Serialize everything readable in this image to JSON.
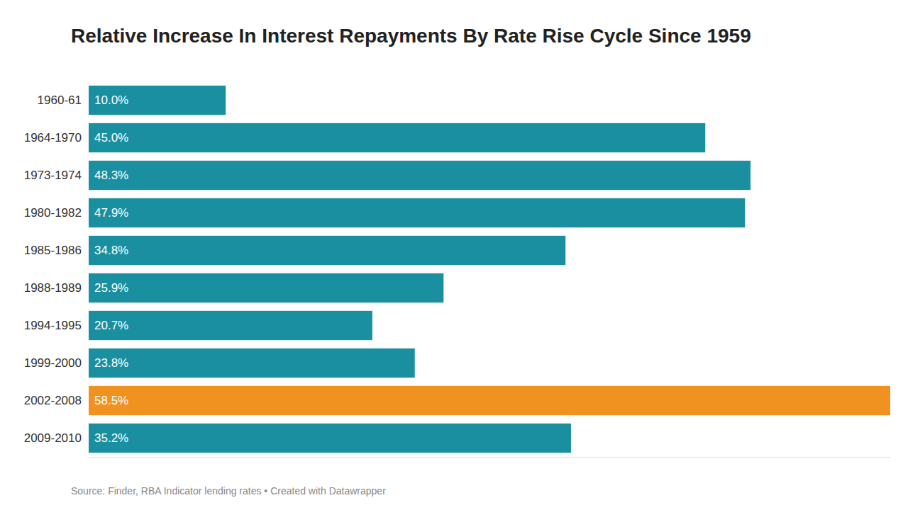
{
  "chart_data": {
    "type": "bar",
    "orientation": "horizontal",
    "title": "Relative Increase In Interest Repayments By Rate Rise Cycle Since 1959",
    "categories": [
      "1960-61",
      "1964-1970",
      "1973-1974",
      "1980-1982",
      "1985-1986",
      "1988-1989",
      "1994-1995",
      "1999-2000",
      "2002-2008",
      "2009-2010"
    ],
    "values": [
      10.0,
      45.0,
      48.3,
      47.9,
      34.8,
      25.9,
      20.7,
      23.8,
      58.5,
      35.2
    ],
    "value_labels": [
      "10.0%",
      "45.0%",
      "48.3%",
      "47.9%",
      "34.8%",
      "25.9%",
      "20.7%",
      "23.8%",
      "58.5%",
      "35.2%"
    ],
    "colors": [
      "#1a8fa0",
      "#1a8fa0",
      "#1a8fa0",
      "#1a8fa0",
      "#1a8fa0",
      "#1a8fa0",
      "#1a8fa0",
      "#1a8fa0",
      "#f0921f",
      "#1a8fa0"
    ],
    "data_labels": true,
    "xlim": [
      0,
      58.5
    ],
    "tick_labels": "y",
    "grid": false,
    "annotations": [
      "Source: Finder, RBA Indicator lending rates • Created with Datawrapper"
    ]
  }
}
